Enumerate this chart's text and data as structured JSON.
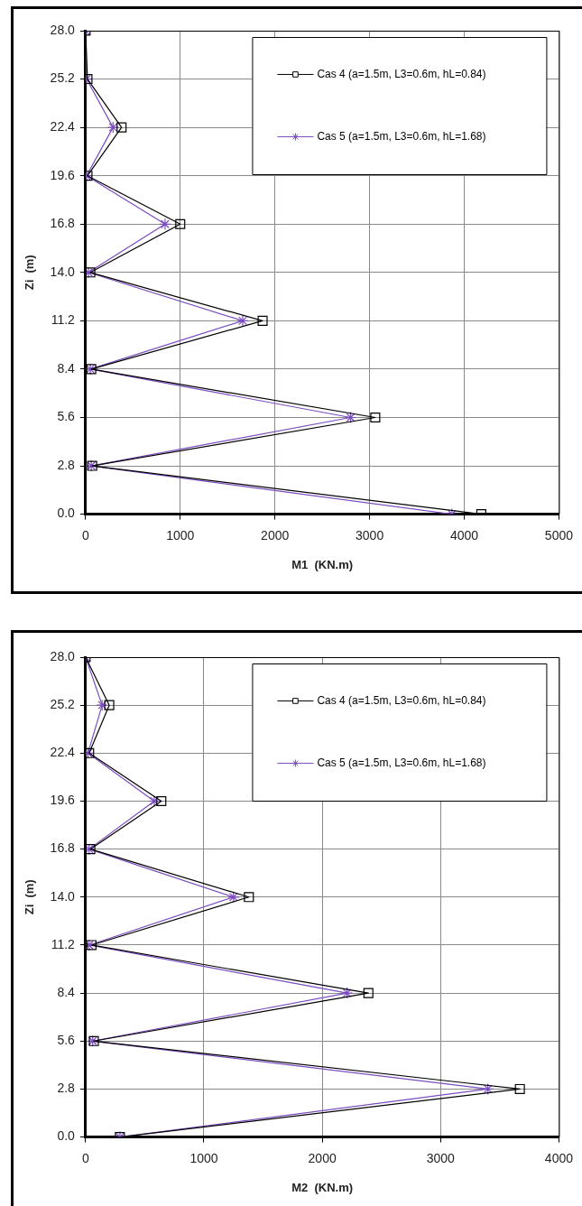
{
  "chart_data": [
    {
      "type": "line",
      "xlabel": "M1  (KN.m)",
      "ylabel": "Zi  (m)",
      "xlim": [
        0,
        5000
      ],
      "xticks": [
        0,
        1000,
        2000,
        3000,
        4000,
        5000
      ],
      "ylim": [
        0,
        28
      ],
      "yticks": [
        {
          "value": 0,
          "label": "0.0"
        },
        {
          "value": 2.8,
          "label": "2.8"
        },
        {
          "value": 5.6,
          "label": "5.6"
        },
        {
          "value": 8.4,
          "label": "8.4"
        },
        {
          "value": 11.2,
          "label": "11.2"
        },
        {
          "value": 14,
          "label": "14.0"
        },
        {
          "value": 16.8,
          "label": "16.8"
        },
        {
          "value": 19.6,
          "label": "19.6"
        },
        {
          "value": 22.4,
          "label": "22.4"
        },
        {
          "value": 25.2,
          "label": "25.2"
        },
        {
          "value": 28,
          "label": "28.0"
        }
      ],
      "grid": true,
      "legend": "top right",
      "series": [
        {
          "name": "Cas 4 (a=1.5m, L3=0.6m, hL=0.84)",
          "color": "#000000",
          "marker": "square",
          "x": [
            0,
            20,
            380,
            20,
            1000,
            50,
            1870,
            60,
            3060,
            70,
            4180
          ],
          "values": [
            28,
            25.2,
            22.4,
            19.6,
            16.8,
            14,
            11.2,
            8.4,
            5.6,
            2.8,
            0
          ]
        },
        {
          "name": "Cas 5 (a=1.5m, L3=0.6m, hL=1.68)",
          "color": "#7b4cc0",
          "marker": "cross",
          "x": [
            0,
            10,
            290,
            10,
            840,
            30,
            1660,
            50,
            2800,
            60,
            3870
          ],
          "values": [
            28,
            25.2,
            22.4,
            19.6,
            16.8,
            14,
            11.2,
            8.4,
            5.6,
            2.8,
            0
          ]
        }
      ]
    },
    {
      "type": "line",
      "xlabel": "M2  (KN.m)",
      "ylabel": "Zi  (m)",
      "xlim": [
        0,
        4000
      ],
      "xticks": [
        0,
        1000,
        2000,
        3000,
        4000
      ],
      "ylim": [
        0,
        28
      ],
      "yticks": [
        {
          "value": 0,
          "label": "0.0"
        },
        {
          "value": 2.8,
          "label": "2.8"
        },
        {
          "value": 5.6,
          "label": "5.6"
        },
        {
          "value": 8.4,
          "label": "8.4"
        },
        {
          "value": 11.2,
          "label": "11.2"
        },
        {
          "value": 14,
          "label": "14.0"
        },
        {
          "value": 16.8,
          "label": "16.8"
        },
        {
          "value": 19.6,
          "label": "19.6"
        },
        {
          "value": 22.4,
          "label": "22.4"
        },
        {
          "value": 25.2,
          "label": "25.2"
        },
        {
          "value": 28,
          "label": "28.0"
        }
      ],
      "grid": true,
      "legend": "top right",
      "series": [
        {
          "name": "Cas 4 (a=1.5m, L3=0.6m, hL=0.84)",
          "color": "#000000",
          "marker": "square",
          "x": [
            0,
            200,
            30,
            640,
            40,
            1380,
            50,
            2390,
            70,
            3670,
            290
          ],
          "values": [
            28,
            25.2,
            22.4,
            19.6,
            16.8,
            14,
            11.2,
            8.4,
            5.6,
            2.8,
            0
          ]
        },
        {
          "name": "Cas 5 (a=1.5m, L3=0.6m, hL=1.68)",
          "color": "#7b4cc0",
          "marker": "cross",
          "x": [
            0,
            140,
            20,
            580,
            30,
            1250,
            30,
            2210,
            60,
            3400,
            290
          ],
          "values": [
            28,
            25.2,
            22.4,
            19.6,
            16.8,
            14,
            11.2,
            8.4,
            5.6,
            2.8,
            0
          ]
        }
      ]
    }
  ]
}
